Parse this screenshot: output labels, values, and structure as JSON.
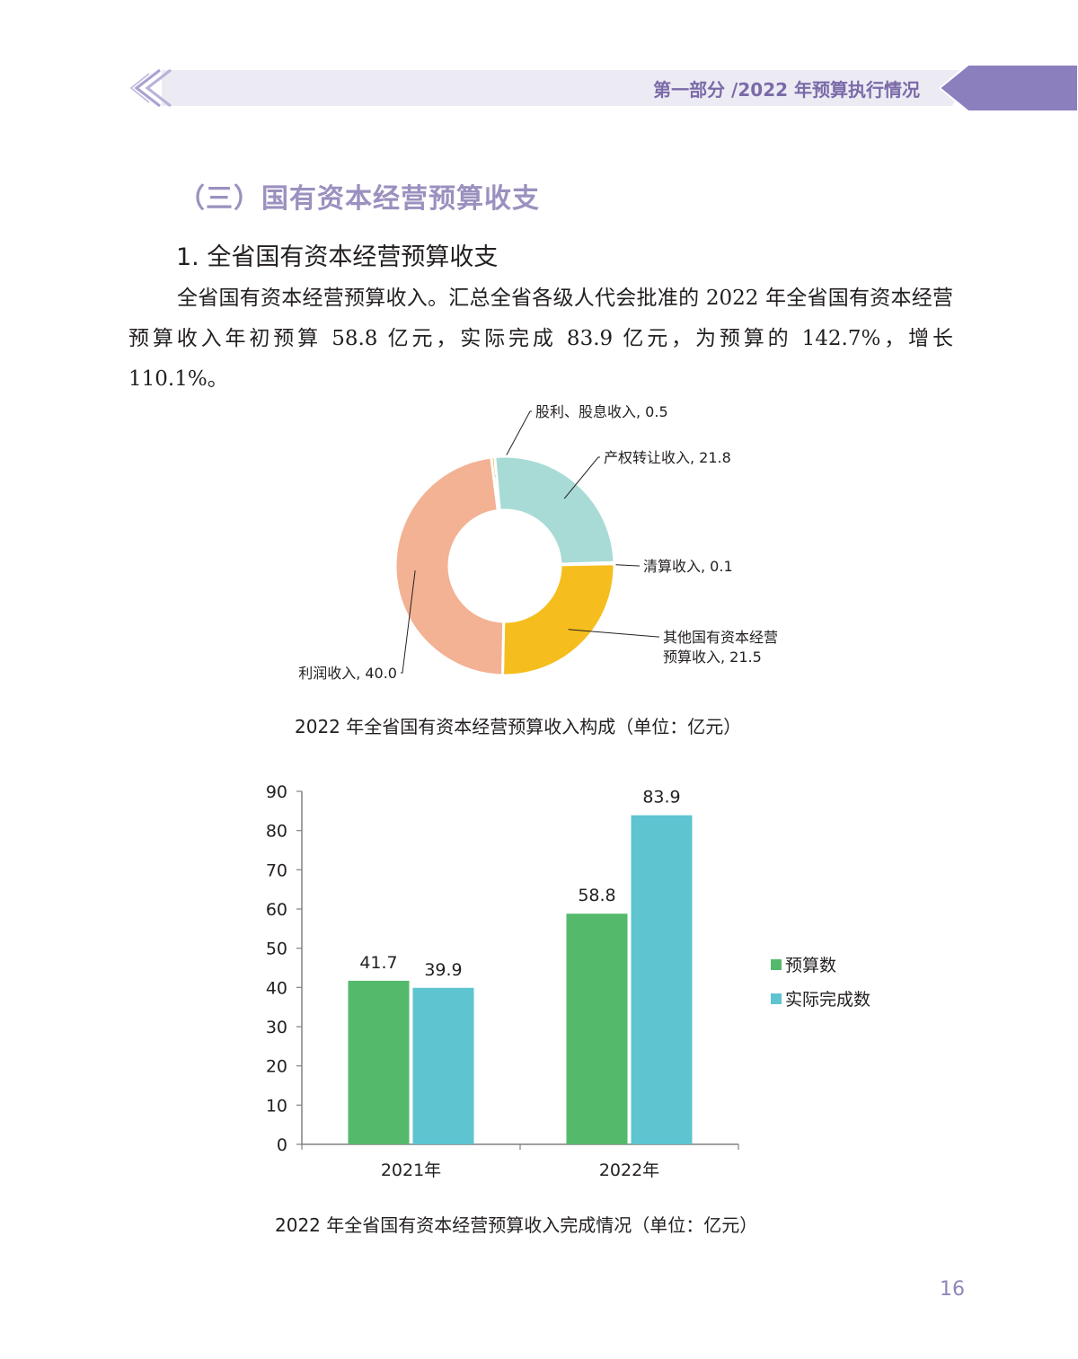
{
  "header": {
    "title": "第一部分 /2022 年预算执行情况",
    "accent_color": "#8b7fbe",
    "band_color": "#ecebf4"
  },
  "section_title": "（三）国有资本经营预算收支",
  "subsection_title": "1. 全省国有资本经营预算收支",
  "paragraph": "全省国有资本经营预算收入。汇总全省各级人代会批准的 2022 年全省国有资本经营预算收入年初预算 58.8 亿元，实际完成 83.9 亿元，为预算的 142.7%，增长 110.1%。",
  "page_number": "16",
  "chart_data": [
    {
      "type": "pie",
      "title": "2022 年全省国有资本经营预算收入构成（单位：亿元）",
      "donut": true,
      "slices": [
        {
          "label": "股利、股息收入",
          "value": 0.5,
          "value_label": "0.5",
          "color": "#f5c040"
        },
        {
          "label": "产权转让收入",
          "value": 21.8,
          "value_label": "21.8",
          "color": "#a8dbd5"
        },
        {
          "label": "清算收入",
          "value": 0.1,
          "value_label": "0.1",
          "color": "#e3e3e3"
        },
        {
          "label": "其他国有资本经营预算收入",
          "value": 21.5,
          "value_label": "21.5",
          "color": "#f5be1e"
        },
        {
          "label": "利润收入",
          "value": 40.0,
          "value_label": "40.0",
          "color": "#f3b294"
        }
      ],
      "label_lines": [
        [
          "股利、股息收入, 0.5"
        ],
        [
          "产权转让收入, 21.8"
        ],
        [
          "清算收入, 0.1"
        ],
        [
          "其他国有资本经营",
          "预算收入, 21.5"
        ],
        [
          "利润收入, 40.0"
        ]
      ]
    },
    {
      "type": "bar",
      "title": "2022 年全省国有资本经营预算收入完成情况（单位：亿元）",
      "categories": [
        "2021年",
        "2022年"
      ],
      "series": [
        {
          "name": "预算数",
          "values": [
            41.7,
            58.8
          ],
          "color": "#55b96c"
        },
        {
          "name": "实际完成数",
          "values": [
            39.9,
            83.9
          ],
          "color": "#5ec4d0"
        }
      ],
      "value_labels": [
        [
          "41.7",
          "58.8"
        ],
        [
          "39.9",
          "83.9"
        ]
      ],
      "ylim": [
        0,
        90
      ],
      "yticks": [
        0,
        10,
        20,
        30,
        40,
        50,
        60,
        70,
        80,
        90
      ],
      "grid": false,
      "legend_position": "right"
    }
  ]
}
